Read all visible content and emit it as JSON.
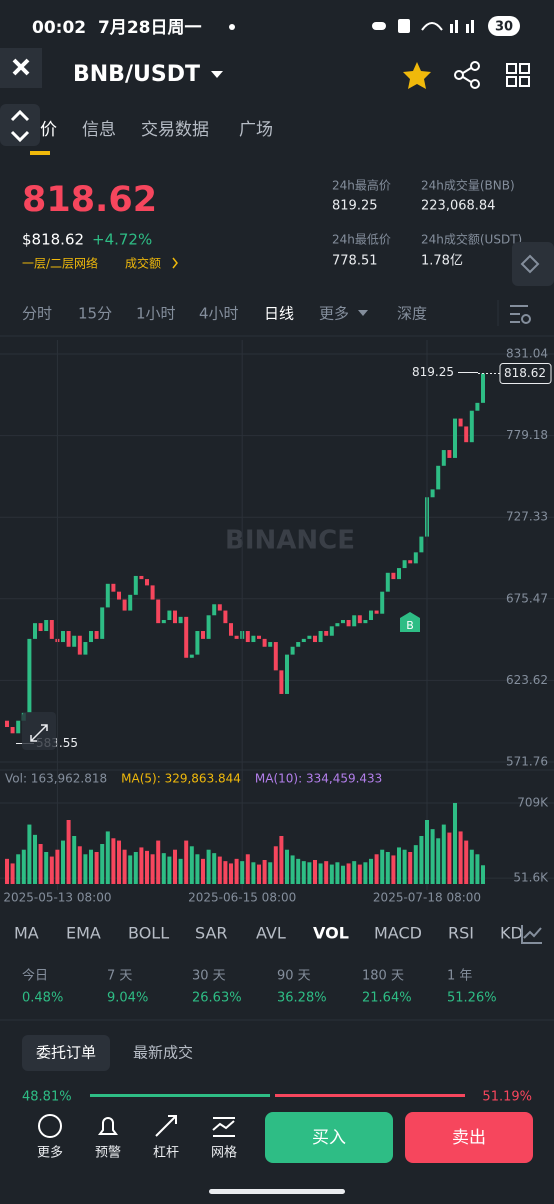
{
  "status_bar": {
    "time": "00:02",
    "date": "7月28日周一",
    "battery": "30"
  },
  "header": {
    "pair": "BNB/USDT"
  },
  "tabs": [
    "价",
    "信息",
    "交易数据",
    "广场"
  ],
  "price": {
    "last": "818.62",
    "usd": "$818.62",
    "change": "+4.72%",
    "network": "一层/二层网络",
    "turnover": "成交额"
  },
  "stats": [
    {
      "label": "24h最高价",
      "value": "819.25"
    },
    {
      "label": "24h成交量(BNB)",
      "value": "223,068.84"
    },
    {
      "label": "24h最低价",
      "value": "778.51"
    },
    {
      "label": "24h成交额(USDT)",
      "value": "1.78亿"
    }
  ],
  "timeframes": [
    "分时",
    "15分",
    "1小时",
    "4小时",
    "日线",
    "更多",
    "深度"
  ],
  "chart_data": [
    {
      "type": "candlestick",
      "open": [
        598,
        594,
        590,
        598,
        603,
        650,
        660,
        655,
        662,
        650,
        648,
        655,
        645,
        652,
        640,
        648,
        655,
        650,
        670,
        685,
        680,
        675,
        668,
        678,
        690,
        688,
        684,
        675,
        660,
        662,
        668,
        660,
        664,
        638,
        640,
        655,
        650,
        665,
        672,
        668,
        660,
        652,
        650,
        655,
        648,
        652,
        650,
        645,
        648,
        630,
        615,
        640,
        645,
        648,
        650,
        652,
        648,
        655,
        652,
        658,
        660,
        662,
        658,
        665,
        660,
        662,
        668,
        666,
        680,
        692,
        688,
        695,
        700,
        698,
        705,
        715,
        740,
        745,
        760,
        770,
        765,
        790,
        785,
        775,
        795,
        800
      ],
      "close": [
        594,
        590,
        598,
        603,
        650,
        660,
        655,
        662,
        650,
        648,
        655,
        645,
        652,
        640,
        648,
        655,
        650,
        670,
        685,
        680,
        675,
        668,
        678,
        690,
        688,
        684,
        675,
        660,
        662,
        668,
        660,
        664,
        638,
        640,
        655,
        650,
        665,
        672,
        668,
        660,
        652,
        650,
        655,
        648,
        652,
        650,
        645,
        648,
        630,
        615,
        640,
        645,
        648,
        650,
        652,
        648,
        655,
        652,
        658,
        660,
        662,
        658,
        665,
        660,
        662,
        668,
        666,
        680,
        692,
        688,
        695,
        700,
        698,
        705,
        715,
        740,
        745,
        760,
        770,
        765,
        790,
        785,
        775,
        795,
        800,
        818.62
      ],
      "ylim": [
        566.68,
        839.94
      ],
      "yticks": [
        571.76,
        623.62,
        675.47,
        727.33,
        779.18,
        831.04
      ],
      "last_price": 818.62,
      "high_label": 819.25,
      "low_label": 583.55,
      "watermark": "BINANCE",
      "marker": "B",
      "up_color": "#2ebd85",
      "down_color": "#f6465d"
    },
    {
      "type": "bar",
      "values": [
        220000,
        180000,
        260000,
        300000,
        520000,
        430000,
        350000,
        280000,
        240000,
        300000,
        380000,
        560000,
        420000,
        330000,
        260000,
        300000,
        280000,
        350000,
        460000,
        400000,
        380000,
        300000,
        250000,
        280000,
        320000,
        290000,
        260000,
        380000,
        270000,
        240000,
        300000,
        220000,
        380000,
        330000,
        260000,
        220000,
        300000,
        270000,
        240000,
        200000,
        180000,
        220000,
        200000,
        260000,
        190000,
        170000,
        210000,
        190000,
        330000,
        420000,
        300000,
        250000,
        220000,
        200000,
        190000,
        210000,
        180000,
        200000,
        170000,
        190000,
        160000,
        180000,
        200000,
        170000,
        190000,
        220000,
        260000,
        300000,
        280000,
        250000,
        320000,
        300000,
        280000,
        340000,
        420000,
        560000,
        480000,
        400000,
        520000,
        450000,
        709000,
        460000,
        380000,
        300000,
        260000,
        163962.818
      ],
      "ylim": [
        0,
        770000
      ],
      "yticks": [
        {
          "value": 709000,
          "label": "709K"
        },
        {
          "value": 51600,
          "label": "51.6K"
        }
      ],
      "xticks": [
        {
          "value": 9,
          "label": "2025-05-13 08:00"
        },
        {
          "value": 42,
          "label": "2025-06-15 08:00"
        },
        {
          "value": 75,
          "label": "2025-07-18 08:00"
        }
      ],
      "legend": [
        {
          "name": "Vol: 163,962.818",
          "color": "#848e9c"
        },
        {
          "name": "MA(5): 329,863.844",
          "color": "#f0b90b"
        },
        {
          "name": "MA(10): 334,459.433",
          "color": "#b37feb"
        }
      ]
    }
  ],
  "indicators": [
    "MA",
    "EMA",
    "BOLL",
    "SAR",
    "AVL",
    "VOL",
    "MACD",
    "RSI",
    "KD"
  ],
  "performance": [
    {
      "period": "今日",
      "value": "0.48%"
    },
    {
      "period": "7 天",
      "value": "9.04%"
    },
    {
      "period": "30 天",
      "value": "26.63%"
    },
    {
      "period": "90 天",
      "value": "36.28%"
    },
    {
      "period": "180 天",
      "value": "21.64%"
    },
    {
      "period": "1 年",
      "value": "51.26%"
    }
  ],
  "order_tabs": [
    "委托订单",
    "最新成交"
  ],
  "depth": {
    "buy": "48.81%",
    "sell": "51.19%"
  },
  "toolbar": [
    "更多",
    "预警",
    "杠杆",
    "网格"
  ],
  "buttons": {
    "buy": "买入",
    "sell": "卖出"
  }
}
